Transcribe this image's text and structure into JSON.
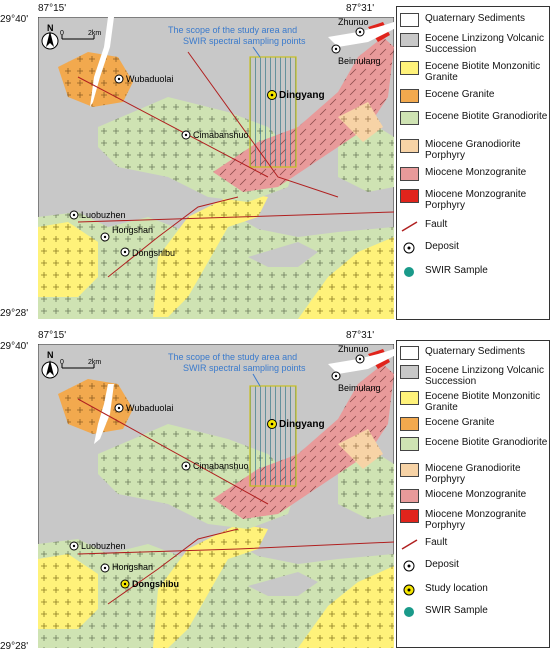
{
  "panels": [
    {
      "id": "top",
      "coords": {
        "top_left_lon": "87°15'",
        "top_right_lon": "87°31'",
        "top_lat": "29°40'",
        "bottom_lat": "29°28'"
      },
      "scale": {
        "zero": "0",
        "dist": "2km"
      },
      "north": "N",
      "callout": {
        "line1": "The scope of the study area and",
        "line2": "SWIR spectral sampling points"
      },
      "places": {
        "zhunuo": "Zhunuo",
        "beimulang": "Beimulang",
        "wubaduolai": "Wubaduolai",
        "dingyang": "Dingyang",
        "cimabanshuo": "Cimabanshuo",
        "luobuzhen": "Luobuzhen",
        "hongshan": "Hongshan",
        "dongshibu": "Dongshibu"
      },
      "legend": [
        {
          "label": "Quaternary Sediments",
          "color": "#ffffff"
        },
        {
          "label": "Eocene Linzizong Volcanic Succession",
          "color": "#c8c8c8"
        },
        {
          "label": "Eocene Biotite Monzonitic Granite",
          "color": "#fff27a"
        },
        {
          "label": "Eocene Granite",
          "color": "#f2a94e"
        },
        {
          "label": "Eocene Biotite Granodiorite",
          "color": "#cfe3b3"
        },
        {
          "label": "Miocene Granodiorite Porphyry",
          "color": "#f7d3a6"
        },
        {
          "label": "Miocene Monzogranite",
          "color": "#e89a9a"
        },
        {
          "label": "Miocene Monzogranite Porphyry",
          "color": "#e0241c"
        },
        {
          "label": "Fault",
          "color": "#b02020"
        },
        {
          "label": "Deposit",
          "color": "#000000"
        },
        {
          "label": "SWIR Sample",
          "color": "#1a9a8a"
        }
      ]
    },
    {
      "id": "bottom",
      "coords": {
        "top_left_lon": "87°15'",
        "top_right_lon": "87°31'",
        "top_lat": "29°40'",
        "bottom_lat": "29°28'"
      },
      "scale": {
        "zero": "0",
        "dist": "2km"
      },
      "north": "N",
      "callout": {
        "line1": "The scope of the study area and",
        "line2": "SWIR spectral sampling points"
      },
      "places": {
        "zhunuo": "Zhunuo",
        "beimulang": "Beimulang",
        "wubaduolai": "Wubaduolai",
        "dingyang": "Dingyang",
        "cimabanshuo": "Cimabanshuo",
        "luobuzhen": "Luobuzhen",
        "hongshan": "Hongshan",
        "dongshibu": "Dongshibu"
      },
      "legend": [
        {
          "label": "Quaternary Sediments",
          "color": "#ffffff"
        },
        {
          "label": "Eocene Linzizong Volcanic Succession",
          "color": "#c8c8c8"
        },
        {
          "label": "Eocene Biotite Monzonitic Granite",
          "color": "#fff27a"
        },
        {
          "label": "Eocene Granite",
          "color": "#f2a94e"
        },
        {
          "label": "Eocene Biotite Granodiorite",
          "color": "#cfe3b3"
        },
        {
          "label": "Miocene Granodiorite Porphyry",
          "color": "#f7d3a6"
        },
        {
          "label": "Miocene Monzogranite",
          "color": "#e89a9a"
        },
        {
          "label": "Miocene Monzogranite Porphyry",
          "color": "#e0241c"
        },
        {
          "label": "Fault",
          "color": "#b02020"
        },
        {
          "label": "Deposit",
          "color": "#000000"
        },
        {
          "label": "Study location",
          "color": "#f5e600"
        },
        {
          "label": "SWIR Sample",
          "color": "#1a9a8a"
        }
      ]
    }
  ]
}
